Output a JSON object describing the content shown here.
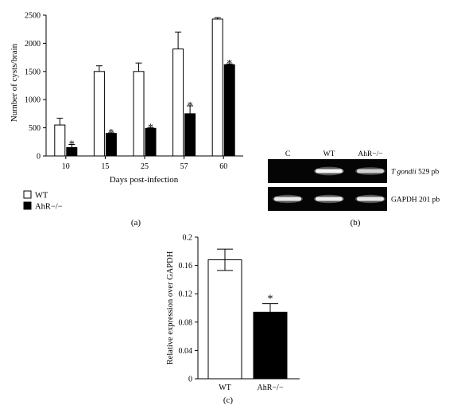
{
  "chart_data": [
    {
      "panel": "(a)",
      "type": "bar",
      "xlabel": "Days post-infection",
      "ylabel": "Number of cysts/brain",
      "ylim": [
        0,
        2500
      ],
      "yticks": [
        "0",
        "500",
        "1000",
        "1500",
        "2000",
        "2500"
      ],
      "categories": [
        "10",
        "15",
        "25",
        "57",
        "60"
      ],
      "legend_position": "bottom-left",
      "series": [
        {
          "name": "WT",
          "fill": "#ffffff",
          "values": [
            550,
            1500,
            1500,
            1900,
            2430
          ],
          "errors": [
            120,
            100,
            150,
            300,
            25
          ]
        },
        {
          "name": "AhR−/−",
          "fill": "#000000",
          "values": [
            150,
            400,
            490,
            750,
            1620
          ],
          "errors": [
            55,
            10,
            10,
            140,
            15
          ]
        }
      ],
      "significance": [
        "*",
        "*",
        "*",
        "*",
        "*"
      ]
    },
    {
      "panel": "(c)",
      "type": "bar",
      "xlabel": "",
      "ylabel": "Relative expression over GAPDH",
      "ylim": [
        0,
        0.2
      ],
      "yticks": [
        "0",
        "0.04",
        "0.08",
        "0.12",
        "0.16",
        "0.2"
      ],
      "categories": [
        "WT",
        "AhR−/−"
      ],
      "values": [
        0.168,
        0.094
      ],
      "errors": [
        0.015,
        0.012
      ],
      "fills": [
        "#ffffff",
        "#000000"
      ],
      "significance": [
        "",
        "*"
      ]
    }
  ],
  "gel": {
    "panel": "(b)",
    "lanes": [
      "C",
      "WT",
      "AhR−/−"
    ],
    "rows": [
      {
        "label_italic": "T gondii",
        "label_rest": " 529 pb",
        "intensity": [
          0,
          0.9,
          0.6
        ]
      },
      {
        "label_italic": "",
        "label_rest": "GAPDH 201 pb",
        "intensity": [
          0.8,
          0.85,
          0.8
        ]
      }
    ]
  }
}
